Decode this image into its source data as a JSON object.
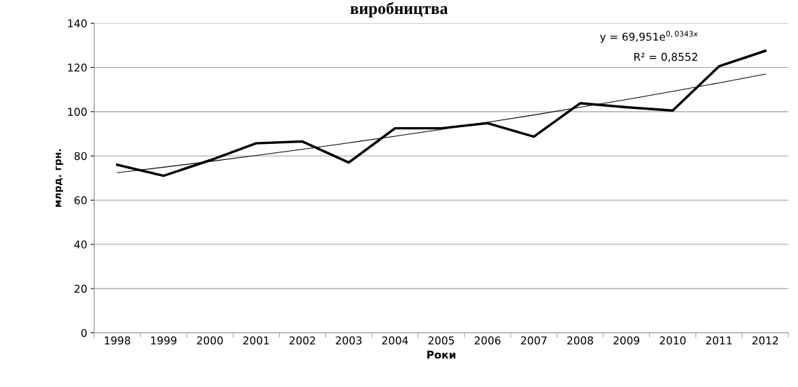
{
  "chart_data": {
    "type": "line",
    "title": "виробництва",
    "xlabel": "Роки",
    "ylabel": "млрд. грн.",
    "categories": [
      "1998",
      "1999",
      "2000",
      "2001",
      "2002",
      "2003",
      "2004",
      "2005",
      "2006",
      "2007",
      "2008",
      "2009",
      "2010",
      "2011",
      "2012"
    ],
    "series": [
      {
        "color": "#000000",
        "values": [
          76,
          71,
          78,
          85.7,
          86.5,
          77,
          92.5,
          92.5,
          94.8,
          88.7,
          103.8,
          102,
          100.5,
          120.5,
          127.5
        ]
      },
      {
        "type": "line",
        "color": "#000000",
        "values": [
          72.4,
          74.9,
          77.5,
          80.2,
          83.0,
          85.9,
          88.9,
          92.0,
          95.2,
          98.5,
          102.0,
          105.5,
          109.2,
          113.0,
          117.0
        ]
      }
    ],
    "annotations": [
      "y = 69,951e$^{0,0343x}$",
      "R² = 0,8552"
    ],
    "ylim": [
      0,
      140
    ],
    "yticks": [
      0,
      20,
      40,
      60,
      80,
      100,
      120,
      140
    ],
    "grid": "y",
    "legend": false,
    "marker": "none",
    "line_style": "solid"
  }
}
